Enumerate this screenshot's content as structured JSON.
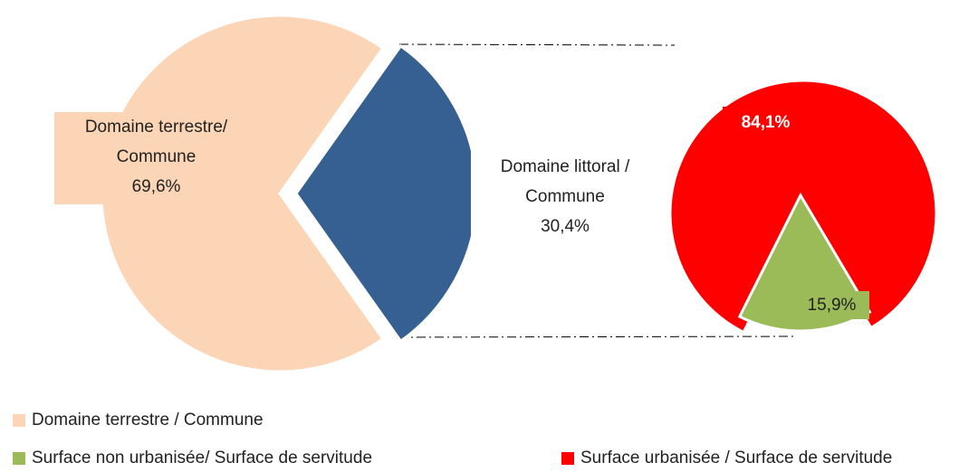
{
  "chart_data": [
    {
      "type": "pie",
      "categories": [
        "Domaine terrestre/ Commune",
        "Domaine littoral / Commune"
      ],
      "values": [
        69.6,
        30.4
      ],
      "value_labels": [
        "69,6%",
        "30,4%"
      ],
      "colors": [
        "#fbd5b5",
        "#376092"
      ],
      "legend_names": [
        "Domaine terrestre / Commune",
        null
      ]
    },
    {
      "type": "pie",
      "categories": [
        "Surface urbanisée / Surface de servitude",
        "Surface non urbanisée/ Surface de servitude"
      ],
      "values": [
        84.1,
        15.9
      ],
      "value_labels": [
        "84,1%",
        "15,9%"
      ],
      "colors": [
        "#ff0000",
        "#9bbb59"
      ]
    }
  ]
}
